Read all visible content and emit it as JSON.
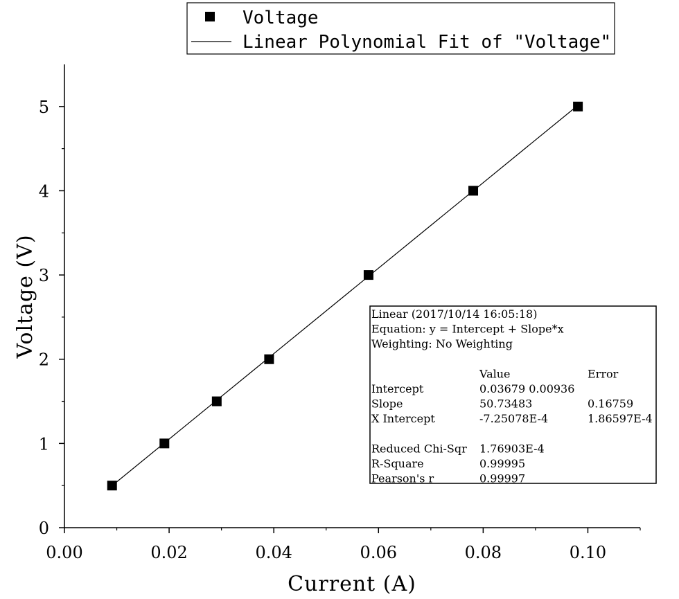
{
  "chart_data": {
    "type": "scatter",
    "title": "",
    "xlabel": "Current (A)",
    "ylabel": "Voltage (V)",
    "xlim": [
      0.0,
      0.11
    ],
    "ylim": [
      0,
      5.5
    ],
    "x_ticks": [
      0.0,
      0.02,
      0.04,
      0.06,
      0.08,
      0.1
    ],
    "x_tick_labels": [
      "0.00",
      "0.02",
      "0.04",
      "0.06",
      "0.08",
      "0.10"
    ],
    "y_ticks": [
      0,
      1,
      2,
      3,
      4,
      5
    ],
    "y_tick_labels": [
      "0",
      "1",
      "2",
      "3",
      "4",
      "5"
    ],
    "grid": false,
    "legend_position": "top",
    "series": [
      {
        "name": "Voltage",
        "marker": "square",
        "color": "#000000",
        "x": [
          0.0091,
          0.0191,
          0.0291,
          0.0391,
          0.0581,
          0.0781,
          0.0981
        ],
        "y": [
          0.5,
          1.0,
          1.5,
          2.0,
          3.0,
          4.0,
          5.0
        ]
      },
      {
        "name": "Linear Polynomial Fit of \"Voltage\"",
        "line": "solid",
        "color": "#000000",
        "fit": {
          "intercept": 0.03679,
          "slope": 50.73483
        },
        "x": [
          0.0091,
          0.0981
        ]
      }
    ],
    "annotation": {
      "lines": [
        [
          "Linear (2017/10/14 16:05:18)",
          "",
          ""
        ],
        [
          "Equation: y = Intercept + Slope*x",
          "",
          ""
        ],
        [
          "Weighting: No Weighting",
          "",
          ""
        ],
        [
          "",
          "",
          ""
        ],
        [
          "",
          "Value",
          "Error"
        ],
        [
          "Intercept",
          "0.03679 0.00936",
          ""
        ],
        [
          "Slope",
          "50.73483",
          "0.16759"
        ],
        [
          "X Intercept",
          "-7.25078E-4",
          "1.86597E-4"
        ],
        [
          "",
          "",
          ""
        ],
        [
          "Reduced Chi-Sqr",
          "1.76903E-4",
          ""
        ],
        [
          "R-Square",
          "0.99995",
          ""
        ],
        [
          "Pearson's r",
          "0.99997",
          ""
        ]
      ]
    }
  }
}
